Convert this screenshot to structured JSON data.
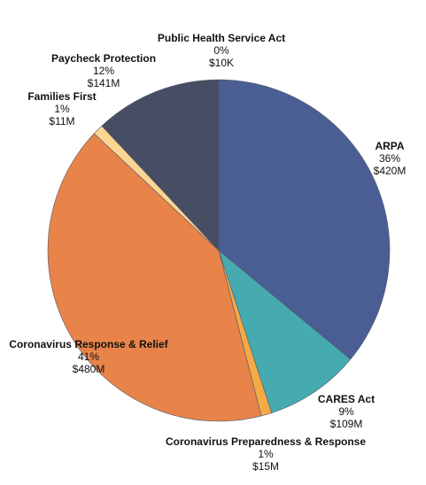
{
  "chart_data": {
    "type": "pie",
    "categories": [
      "ARPA",
      "CARES Act",
      "Coronavirus Preparedness & Response",
      "Coronavirus Response & Relief",
      "Families First",
      "Paycheck Protection",
      "Public Health Service Act"
    ],
    "values": [
      36,
      9,
      1,
      41,
      1,
      12,
      0
    ],
    "value_labels": [
      "36%",
      "9%",
      "1%",
      "41%",
      "1%",
      "12%",
      "0%"
    ],
    "amounts": [
      "$420M",
      "$109M",
      "$15M",
      "$480M",
      "$11M",
      "$141M",
      "$10K"
    ],
    "colors": [
      "#4a5e94",
      "#45abb0",
      "#f5ab45",
      "#e8834a",
      "#fcd592",
      "#474d62",
      "#5b5f70"
    ]
  }
}
